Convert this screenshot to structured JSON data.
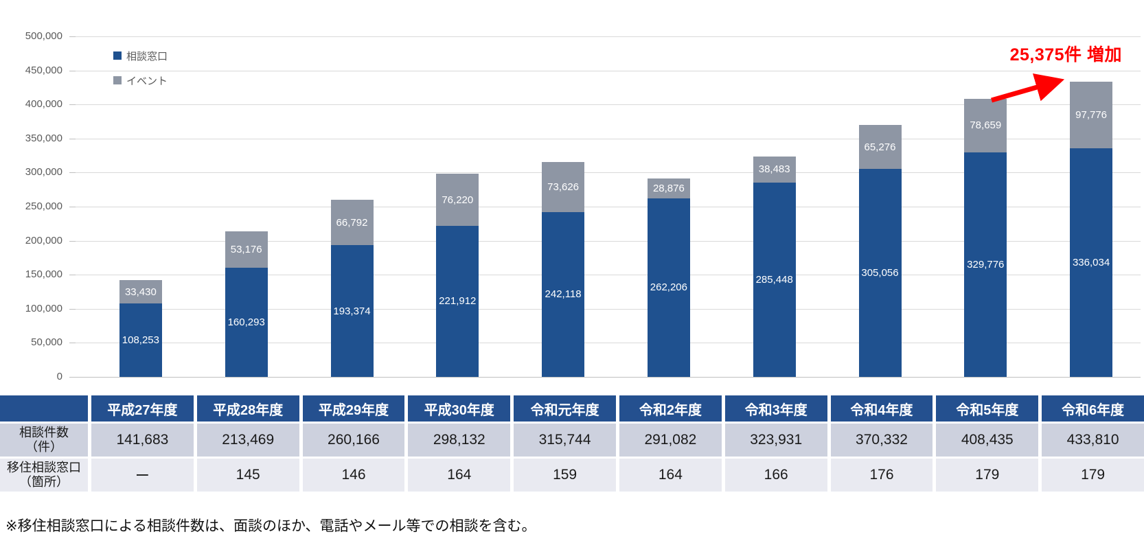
{
  "chart_data": {
    "type": "bar",
    "stacked": true,
    "categories": [
      "平成27年度",
      "平成28年度",
      "平成29年度",
      "平成30年度",
      "令和元年度",
      "令和2年度",
      "令和3年度",
      "令和4年度",
      "令和5年度",
      "令和6年度"
    ],
    "series": [
      {
        "name": "相談窓口",
        "color": "#1F518F",
        "values": [
          108253,
          160293,
          193374,
          221912,
          242118,
          262206,
          285448,
          305056,
          329776,
          336034
        ]
      },
      {
        "name": "イベント",
        "color": "#8E96A4",
        "values": [
          33430,
          53176,
          66792,
          76220,
          73626,
          28876,
          38483,
          65276,
          78659,
          97776
        ]
      }
    ],
    "totals": [
      141683,
      213469,
      260166,
      298132,
      315744,
      291082,
      323931,
      370332,
      408435,
      433810
    ],
    "xlabel": "",
    "ylabel": "",
    "ylim": [
      0,
      500000
    ],
    "ytick_step": 50000,
    "grid": true,
    "legend_position": "top-left",
    "annotation": {
      "text": "25,375件 増加",
      "color": "#FF0000"
    }
  },
  "table": {
    "corner": "",
    "header": [
      "平成27年度",
      "平成28年度",
      "平成29年度",
      "平成30年度",
      "令和元年度",
      "令和2年度",
      "令和3年度",
      "令和4年度",
      "令和5年度",
      "令和6年度"
    ],
    "rows": [
      {
        "label": "相談件数\n（件）",
        "values": [
          "141,683",
          "213,469",
          "260,166",
          "298,132",
          "315,744",
          "291,082",
          "323,931",
          "370,332",
          "408,435",
          "433,810"
        ]
      },
      {
        "label": "移住相談窓口\n（箇所）",
        "values": [
          "ー",
          "145",
          "146",
          "164",
          "159",
          "164",
          "166",
          "176",
          "179",
          "179"
        ]
      }
    ]
  },
  "footnote": "※移住相談窓口による相談件数は、面談のほか、電話やメール等での相談を含む。",
  "colors": {
    "bar_blue": "#1F518F",
    "bar_gray": "#8E96A4",
    "header_blue": "#24508F",
    "row1_bg": "#CDD1DE",
    "row2_bg": "#E9EAF1",
    "gridline": "#D9D9D9",
    "axis_text": "#595959",
    "annotation_red": "#FF0000"
  }
}
